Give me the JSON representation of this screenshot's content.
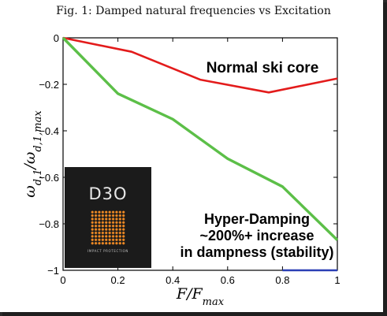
{
  "figure": {
    "caption": "Fig. 1: Damped natural frequencies vs Excitation"
  },
  "chart_data": {
    "type": "line",
    "title": "",
    "xlabel": "F/F_max",
    "ylabel": "ω_{d,1}/ω_{d,1,max}",
    "xlim": [
      0,
      1
    ],
    "ylim": [
      -1,
      0
    ],
    "x_ticks": [
      0,
      0.2,
      0.4,
      0.6,
      0.8,
      1
    ],
    "x_tick_labels": [
      "0",
      "0.2",
      "0.4",
      "0.6",
      "0.8",
      "1"
    ],
    "y_ticks": [
      0,
      -0.2,
      -0.4,
      -0.6,
      -0.8,
      -1
    ],
    "y_tick_labels": [
      "0",
      "−0.2",
      "−0.4",
      "−0.6",
      "−0.8",
      "−1"
    ],
    "grid": false,
    "series": [
      {
        "color": "#e31b1b",
        "x": [
          0,
          0.25,
          0.5,
          0.75,
          1.0
        ],
        "y": [
          0,
          -0.06,
          -0.18,
          -0.235,
          -0.175
        ]
      },
      {
        "color": "#5cbf48",
        "x": [
          0,
          0.2,
          0.4,
          0.6,
          0.8,
          1.0
        ],
        "y": [
          0,
          -0.24,
          -0.35,
          -0.52,
          -0.64,
          -0.87
        ]
      },
      {
        "color": "#2a3fb5",
        "x": [
          0.8,
          1.0
        ],
        "y": [
          -1.0,
          -1.0
        ]
      }
    ],
    "annotations": [
      {
        "text": "Normal ski core"
      },
      {
        "lines": [
          "Hyper-Damping",
          "~200%+ increase",
          "in dampness (stability)"
        ]
      }
    ]
  },
  "logo": {
    "brand": "D3O",
    "tagline": "IMPACT PROTECTION",
    "accent": "#f08a24"
  }
}
